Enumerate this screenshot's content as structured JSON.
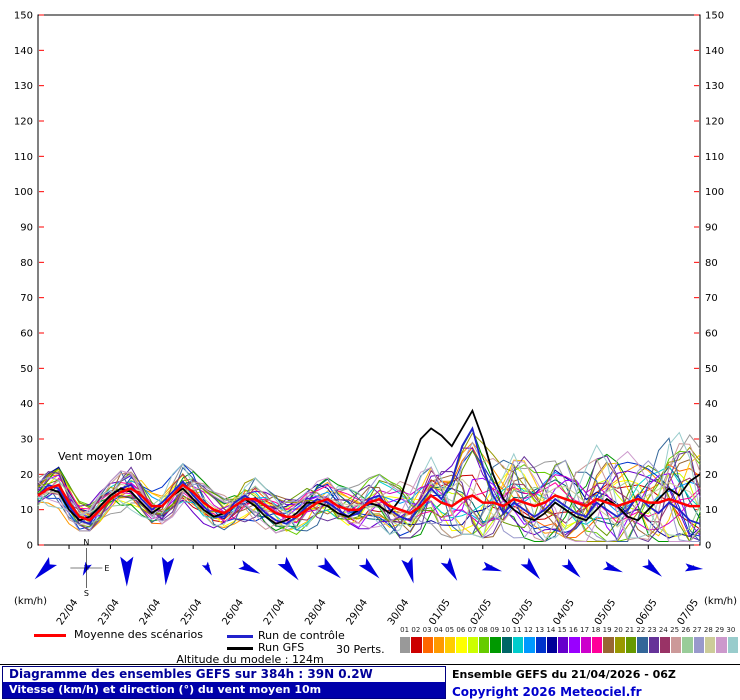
{
  "labels": {
    "unit_left": "(km/h)",
    "unit_right": "(km/h)",
    "plot_annotation": "Vent moyen 10m",
    "legend_mean": "Moyenne des scénarios",
    "legend_control": "Run de contrôle",
    "legend_gfs": "Run GFS",
    "legend_perts": "30 Perts.",
    "altitude": "Altitude du modele : 124m",
    "footer_title": "Diagramme des ensembles GEFS sur 384h : 39N 0.2W",
    "footer_subtitle": "Vitesse (km/h) et direction (°) du vent moyen 10m",
    "footer_run": "Ensemble GEFS du 21/04/2026 - 06Z",
    "footer_copyright": "Copyright 2026 Meteociel.fr",
    "compass": {
      "n": "N",
      "e": "E",
      "s": "S"
    }
  },
  "colors": {
    "tick": "#ff0000",
    "arrow": "#0000dd",
    "frame": "#000000"
  },
  "chart_data": {
    "type": "line",
    "title": "Diagramme des ensembles GEFS sur 384h : 39N 0.2W",
    "subtitle": "Vitesse (km/h) et direction (°) du vent moyen 10m",
    "run_info": "Ensemble GEFS du 21/04/2026 - 06Z",
    "ylabel": "(km/h)",
    "ylim": [
      0,
      150
    ],
    "ytick_step": 10,
    "x_step_hours": 6,
    "x_hours_total": 384,
    "x_date_labels": [
      "22/04",
      "23/04",
      "24/04",
      "25/04",
      "26/04",
      "27/04",
      "28/04",
      "29/04",
      "30/04",
      "01/05",
      "02/05",
      "03/05",
      "04/05",
      "05/05",
      "06/05",
      "07/05"
    ],
    "series": [
      {
        "name": "Moyenne des scénarios",
        "color": "#ff0000",
        "width": 2.5,
        "values": [
          14,
          16,
          17,
          12,
          8,
          7,
          10,
          13,
          15,
          16,
          14,
          11,
          11,
          14,
          17,
          15,
          12,
          10,
          9,
          11,
          13,
          13,
          11,
          9,
          8,
          8,
          10,
          12,
          13,
          11,
          10,
          10,
          12,
          13,
          11,
          10,
          9,
          11,
          14,
          12,
          11,
          13,
          14,
          12,
          12,
          11,
          13,
          12,
          11,
          12,
          14,
          13,
          12,
          11,
          13,
          12,
          11,
          12,
          13,
          12,
          12,
          13,
          12,
          11,
          11
        ]
      },
      {
        "name": "Run de contrôle",
        "color": "#2222cc",
        "width": 1.8,
        "values": [
          14,
          17,
          16,
          11,
          7,
          6,
          11,
          14,
          16,
          17,
          13,
          10,
          12,
          15,
          18,
          14,
          11,
          8,
          8,
          12,
          14,
          12,
          9,
          7,
          6,
          8,
          11,
          13,
          12,
          10,
          8,
          9,
          13,
          14,
          10,
          8,
          7,
          12,
          16,
          13,
          18,
          28,
          33,
          22,
          14,
          9,
          12,
          10,
          8,
          10,
          13,
          11,
          9,
          8,
          12,
          10,
          8,
          10,
          14,
          11,
          9,
          12,
          10,
          7,
          6
        ]
      },
      {
        "name": "Run GFS",
        "color": "#000000",
        "width": 1.8,
        "values": [
          14,
          16,
          15,
          10,
          7,
          8,
          11,
          14,
          16,
          15,
          12,
          9,
          11,
          14,
          16,
          13,
          10,
          8,
          9,
          11,
          13,
          11,
          8,
          6,
          7,
          9,
          12,
          12,
          11,
          9,
          8,
          10,
          12,
          11,
          9,
          13,
          22,
          30,
          33,
          31,
          28,
          33,
          38,
          30,
          20,
          13,
          10,
          8,
          7,
          9,
          12,
          10,
          8,
          7,
          10,
          13,
          11,
          8,
          7,
          10,
          13,
          16,
          14,
          18,
          20
        ]
      }
    ],
    "ensemble": {
      "count": 30,
      "seed": 20260421,
      "numbers": [
        "01",
        "02",
        "03",
        "04",
        "05",
        "06",
        "07",
        "08",
        "09",
        "10",
        "11",
        "12",
        "13",
        "14",
        "15",
        "16",
        "17",
        "18",
        "19",
        "20",
        "21",
        "22",
        "23",
        "24",
        "25",
        "26",
        "27",
        "28",
        "29",
        "30"
      ],
      "colors": [
        "#999999",
        "#cc0000",
        "#ff6600",
        "#ff9900",
        "#ffcc00",
        "#ffff00",
        "#ccff00",
        "#66cc00",
        "#009900",
        "#006666",
        "#00cccc",
        "#0099ff",
        "#0033cc",
        "#000099",
        "#6600cc",
        "#9900ff",
        "#cc00cc",
        "#ff0099",
        "#996633",
        "#999900",
        "#669900",
        "#336699",
        "#663399",
        "#993366",
        "#cc9999",
        "#99cc99",
        "#9999cc",
        "#cccc99",
        "#cc99cc",
        "#99cccc"
      ],
      "min": [
        9,
        10,
        9,
        6,
        4,
        4,
        6,
        8,
        9,
        9,
        7,
        5,
        6,
        8,
        9,
        7,
        5,
        4,
        4,
        5,
        6,
        5,
        4,
        3,
        3,
        3,
        4,
        5,
        5,
        4,
        3,
        3,
        4,
        4,
        3,
        2,
        2,
        3,
        4,
        3,
        2,
        3,
        3,
        2,
        2,
        1,
        2,
        2,
        1,
        1,
        2,
        2,
        1,
        1,
        1,
        1,
        1,
        1,
        2,
        1,
        1,
        1,
        1,
        1,
        1
      ],
      "max": [
        19,
        21,
        22,
        17,
        13,
        12,
        15,
        18,
        21,
        22,
        19,
        16,
        17,
        20,
        23,
        21,
        18,
        15,
        14,
        17,
        19,
        19,
        16,
        14,
        13,
        14,
        16,
        18,
        19,
        17,
        16,
        17,
        19,
        20,
        18,
        18,
        20,
        24,
        27,
        26,
        28,
        38,
        45,
        40,
        33,
        28,
        30,
        28,
        25,
        26,
        30,
        33,
        30,
        27,
        29,
        33,
        36,
        32,
        30,
        33,
        36,
        40,
        38,
        42,
        35
      ]
    },
    "wind_arrows": {
      "annotation": "Vent moyen 10m",
      "directions_deg": [
        225,
        205,
        180,
        185,
        150,
        115,
        140,
        130,
        135,
        165,
        150,
        105,
        140,
        135,
        110,
        130,
        95
      ],
      "lengths": [
        26,
        14,
        30,
        28,
        14,
        22,
        26,
        26,
        24,
        26,
        24,
        20,
        24,
        22,
        20,
        22,
        18
      ]
    }
  }
}
